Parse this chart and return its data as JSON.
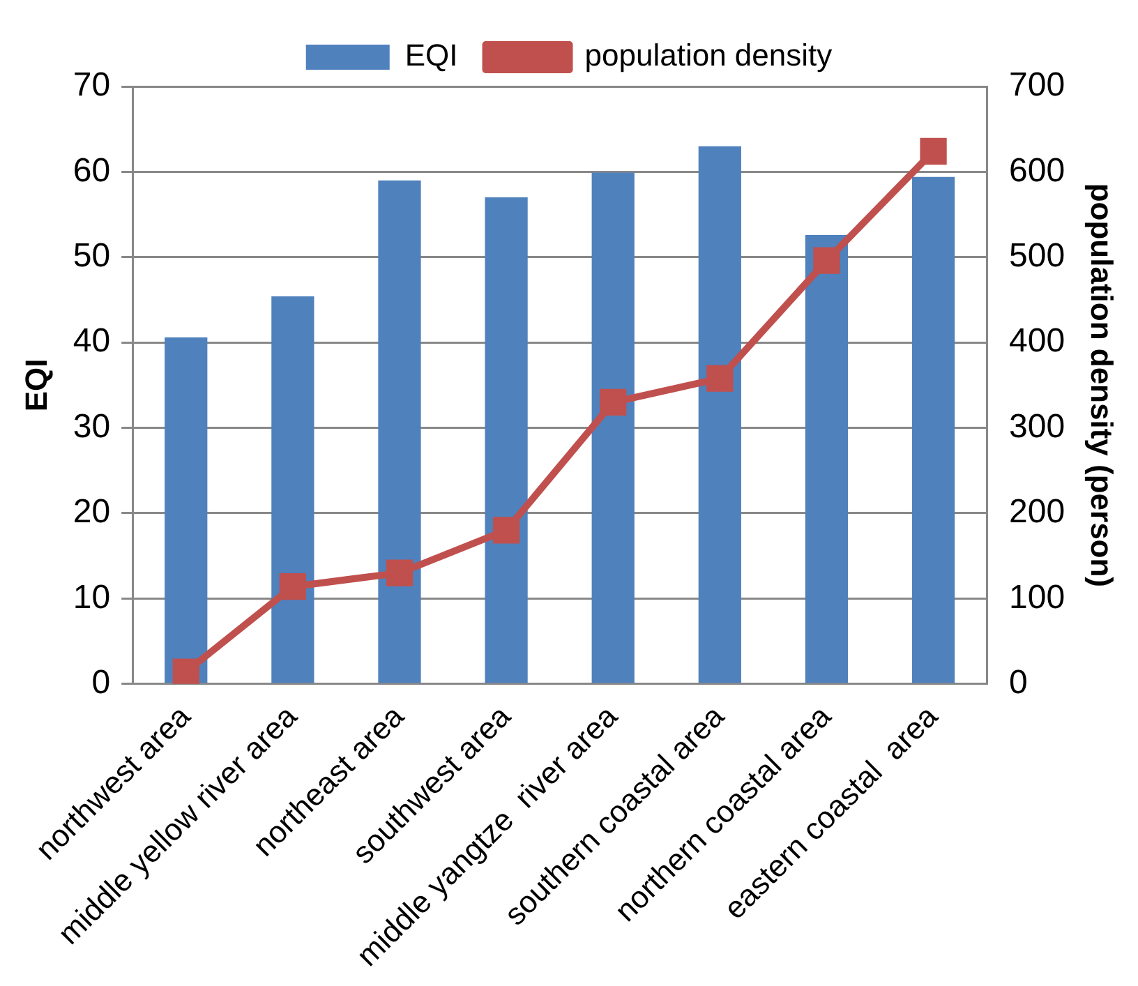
{
  "chart_data": {
    "type": "bar",
    "ylabel": "EQI",
    "y2label": "population density (person)",
    "categories": [
      "northwest area",
      "middle yellow river area",
      "northeast area",
      "southwest area",
      "middle yangtze  river area",
      "southern coastal area",
      "northern coastal area",
      "eastern coastal  area"
    ],
    "series": [
      {
        "name": "EQI",
        "color": "#4f81bd",
        "values": [
          40.6,
          45.4,
          59.0,
          57.0,
          59.9,
          63.0,
          52.6,
          59.4
        ]
      },
      {
        "name": "population density",
        "type": "line",
        "axis": "y2",
        "color": "#c0504d",
        "marker": "square",
        "values": [
          14,
          114,
          130,
          180,
          330,
          358,
          496,
          624
        ]
      }
    ],
    "ylim": [
      0,
      70
    ],
    "yticks": [
      0,
      10,
      20,
      30,
      40,
      50,
      60,
      70
    ],
    "y2lim": [
      0,
      700
    ],
    "y2ticks": [
      0,
      100,
      200,
      300,
      400,
      500,
      600,
      700
    ],
    "grid": "y",
    "legend": "top"
  }
}
